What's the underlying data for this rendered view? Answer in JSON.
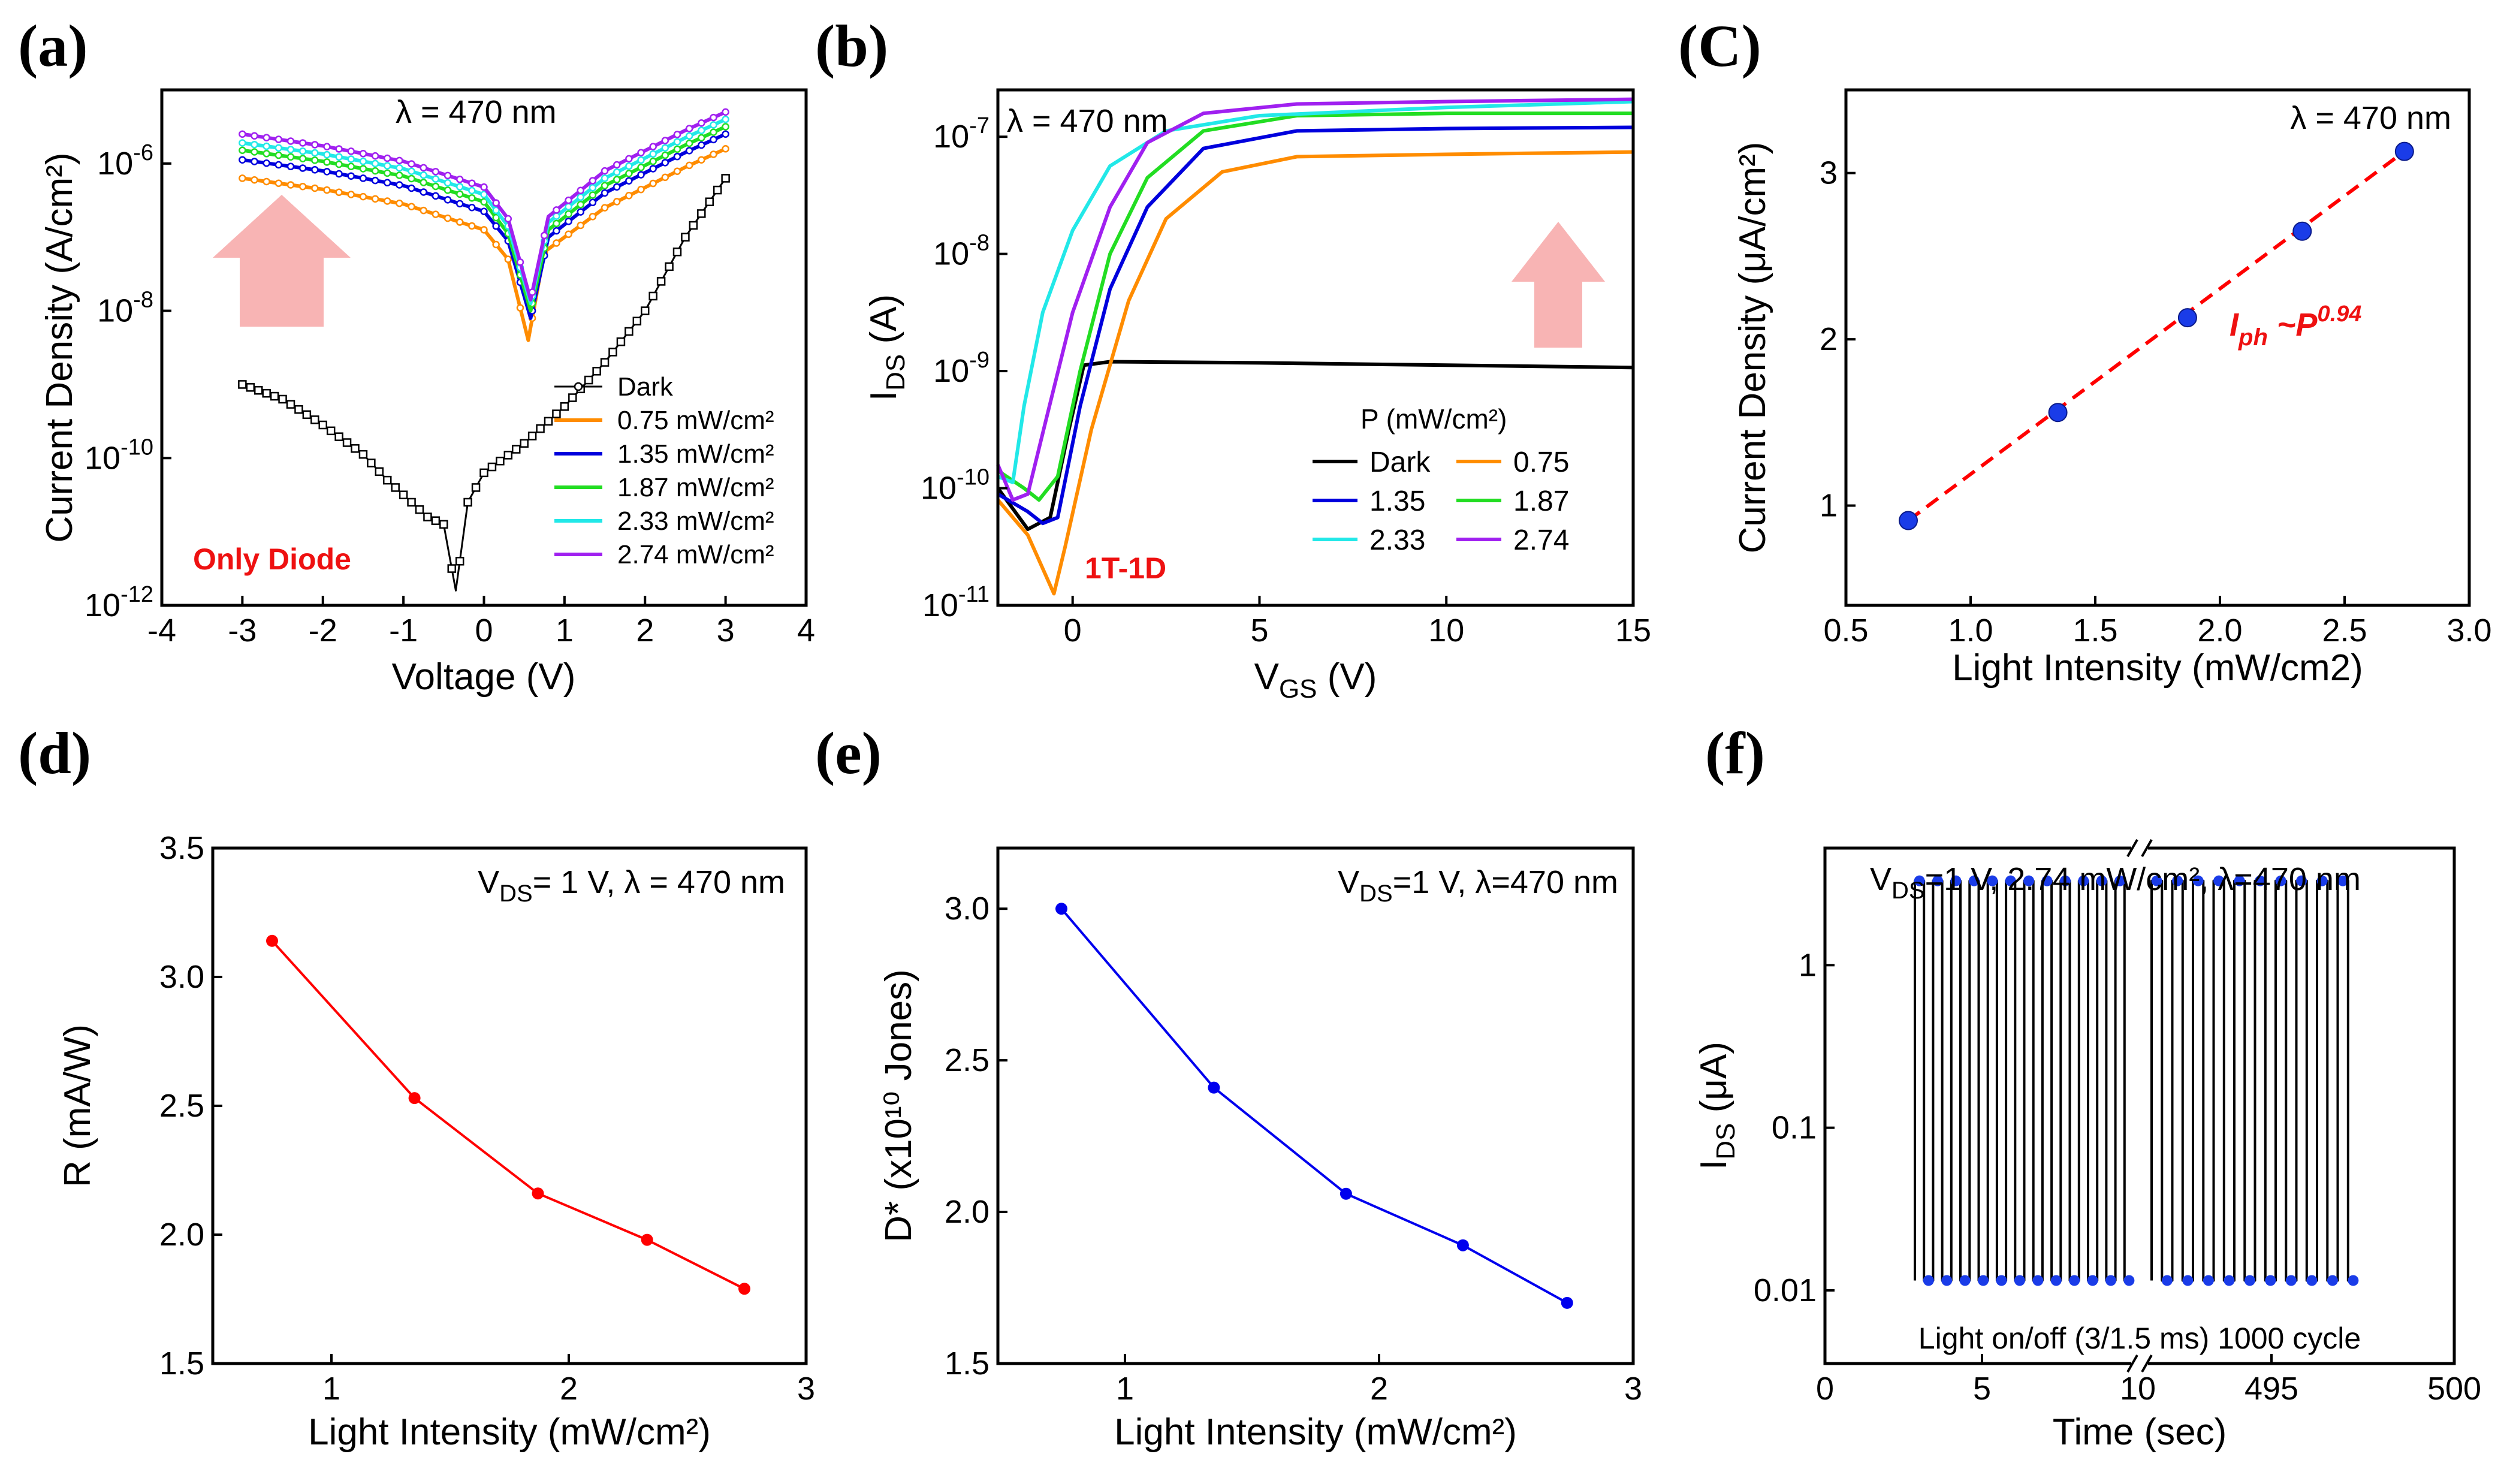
{
  "colors": {
    "dark": "#000000",
    "p075": "#ff8c00",
    "p135": "#0000dd",
    "p187": "#22dd22",
    "p233": "#22e8e8",
    "p274": "#a020f0",
    "arrow": "#f8b4b4",
    "red": "#ff0000",
    "blue": "#0000ee",
    "fit": "#ff0000",
    "marker": "#1a3ce8"
  },
  "chart_data": [
    {
      "id": "a",
      "panel_label": "(a)",
      "type": "line",
      "xlabel": "Voltage (V)",
      "ylabel": "Current Density (A/cm²)",
      "yscale": "log",
      "xlim": [
        -4,
        4
      ],
      "ylim_log10": [
        -12,
        -5
      ],
      "xticks": [
        -4,
        -3,
        -2,
        -1,
        0,
        1,
        2,
        3,
        4
      ],
      "xtick_labels": [
        "-4",
        "-3",
        "-2",
        "-1",
        "0",
        "1",
        "2",
        "3",
        "4"
      ],
      "yticks_exp": [
        -12,
        -10,
        -8,
        -6
      ],
      "ytick_labels": [
        {
          "base": "10",
          "exp": "-12"
        },
        {
          "base": "10",
          "exp": "-10"
        },
        {
          "base": "10",
          "exp": "-8"
        },
        {
          "base": "10",
          "exp": "-6"
        }
      ],
      "annotation": "λ = 470 nm",
      "note": "Only Diode",
      "legend": [
        "Dark",
        "0.75 mW/cm²",
        "1.35 mW/cm²",
        "1.87 mW/cm²",
        "2.33 mW/cm²",
        "2.74 mW/cm²"
      ],
      "series": [
        {
          "name": "Dark",
          "color_key": "dark",
          "log10_points": [
            [
              -3,
              -9.0
            ],
            [
              -2.5,
              -9.2
            ],
            [
              -2,
              -9.55
            ],
            [
              -1.5,
              -9.95
            ],
            [
              -1.2,
              -10.3
            ],
            [
              -1.0,
              -10.5
            ],
            [
              -0.7,
              -10.8
            ],
            [
              -0.5,
              -10.9
            ],
            [
              -0.35,
              -11.8
            ],
            [
              -0.2,
              -10.6
            ],
            [
              0,
              -10.2
            ],
            [
              0.5,
              -9.8
            ],
            [
              1,
              -9.3
            ],
            [
              1.5,
              -8.7
            ],
            [
              2,
              -8.0
            ],
            [
              2.5,
              -7.0
            ],
            [
              3,
              -6.2
            ]
          ]
        },
        {
          "name": "0.75 mW/cm²",
          "color_key": "p075",
          "log10_points": [
            [
              -3,
              -6.2
            ],
            [
              -2,
              -6.35
            ],
            [
              -1,
              -6.55
            ],
            [
              0,
              -6.9
            ],
            [
              0.3,
              -7.3
            ],
            [
              0.55,
              -8.4
            ],
            [
              0.75,
              -7.2
            ],
            [
              1.5,
              -6.6
            ],
            [
              2.5,
              -6.05
            ],
            [
              3,
              -5.8
            ]
          ]
        },
        {
          "name": "1.35 mW/cm²",
          "color_key": "p135",
          "log10_points": [
            [
              -3,
              -5.95
            ],
            [
              -2,
              -6.1
            ],
            [
              -1,
              -6.3
            ],
            [
              0,
              -6.65
            ],
            [
              0.3,
              -7.05
            ],
            [
              0.58,
              -8.1
            ],
            [
              0.8,
              -7.0
            ],
            [
              1.5,
              -6.4
            ],
            [
              2.5,
              -5.85
            ],
            [
              3,
              -5.6
            ]
          ]
        },
        {
          "name": "1.87 mW/cm²",
          "color_key": "p187",
          "log10_points": [
            [
              -3,
              -5.82
            ],
            [
              -2,
              -5.97
            ],
            [
              -1,
              -6.17
            ],
            [
              0,
              -6.52
            ],
            [
              0.3,
              -6.95
            ],
            [
              0.58,
              -8.0
            ],
            [
              0.8,
              -6.9
            ],
            [
              1.5,
              -6.3
            ],
            [
              2.5,
              -5.75
            ],
            [
              3,
              -5.5
            ]
          ]
        },
        {
          "name": "2.33 mW/cm²",
          "color_key": "p233",
          "log10_points": [
            [
              -3,
              -5.72
            ],
            [
              -2,
              -5.87
            ],
            [
              -1,
              -6.07
            ],
            [
              0,
              -6.42
            ],
            [
              0.3,
              -6.85
            ],
            [
              0.58,
              -7.9
            ],
            [
              0.8,
              -6.8
            ],
            [
              1.5,
              -6.2
            ],
            [
              2.5,
              -5.65
            ],
            [
              3,
              -5.4
            ]
          ]
        },
        {
          "name": "2.74 mW/cm²",
          "color_key": "p274",
          "log10_points": [
            [
              -3,
              -5.6
            ],
            [
              -2,
              -5.76
            ],
            [
              -1,
              -5.97
            ],
            [
              0,
              -6.32
            ],
            [
              0.3,
              -6.75
            ],
            [
              0.58,
              -7.85
            ],
            [
              0.8,
              -6.72
            ],
            [
              1.5,
              -6.1
            ],
            [
              2.5,
              -5.55
            ],
            [
              3,
              -5.3
            ]
          ]
        }
      ]
    },
    {
      "id": "b",
      "panel_label": "(b)",
      "type": "line",
      "xlabel": {
        "main": "V",
        "sub": "GS",
        "rest": " (V)"
      },
      "ylabel": {
        "main": "I",
        "sub": "DS",
        "rest": " (A)"
      },
      "yscale": "log",
      "xlim": [
        -2,
        15
      ],
      "ylim_log10": [
        -11,
        -6.6
      ],
      "xticks": [
        0,
        5,
        10,
        15
      ],
      "xtick_labels": [
        "0",
        "5",
        "10",
        "15"
      ],
      "yticks_exp": [
        -11,
        -10,
        -9,
        -8,
        -7
      ],
      "ytick_labels": [
        {
          "base": "10",
          "exp": "-11"
        },
        {
          "base": "10",
          "exp": "-10"
        },
        {
          "base": "10",
          "exp": "-9"
        },
        {
          "base": "10",
          "exp": "-8"
        },
        {
          "base": "10",
          "exp": "-7"
        }
      ],
      "annotation": "λ = 470 nm",
      "note": "1T-1D",
      "legend_title": "P (mW/cm²)",
      "legend": [
        "Dark",
        "0.75",
        "1.35",
        "1.87",
        "2.33",
        "2.74"
      ],
      "series": [
        {
          "name": "Dark",
          "color_key": "dark",
          "log10_points": [
            [
              -2,
              -10.0
            ],
            [
              -1.2,
              -10.35
            ],
            [
              -0.6,
              -10.25
            ],
            [
              -0.1,
              -9.5
            ],
            [
              0.3,
              -8.95
            ],
            [
              1,
              -8.92
            ],
            [
              5,
              -8.93
            ],
            [
              10,
              -8.95
            ],
            [
              15,
              -8.97
            ]
          ]
        },
        {
          "name": "0.75",
          "color_key": "p075",
          "log10_points": [
            [
              -2,
              -10.1
            ],
            [
              -1.2,
              -10.4
            ],
            [
              -0.5,
              -10.9
            ],
            [
              -0.2,
              -10.5
            ],
            [
              0.5,
              -9.5
            ],
            [
              1.5,
              -8.4
            ],
            [
              2.5,
              -7.7
            ],
            [
              4,
              -7.3
            ],
            [
              6,
              -7.17
            ],
            [
              10,
              -7.15
            ],
            [
              15,
              -7.13
            ]
          ]
        },
        {
          "name": "1.35",
          "color_key": "p135",
          "log10_points": [
            [
              -2,
              -10.05
            ],
            [
              -1.2,
              -10.2
            ],
            [
              -0.8,
              -10.3
            ],
            [
              -0.4,
              -10.25
            ],
            [
              0.2,
              -9.3
            ],
            [
              1,
              -8.3
            ],
            [
              2,
              -7.6
            ],
            [
              3.5,
              -7.1
            ],
            [
              6,
              -6.95
            ],
            [
              10,
              -6.93
            ],
            [
              15,
              -6.92
            ]
          ]
        },
        {
          "name": "1.87",
          "color_key": "p187",
          "log10_points": [
            [
              -2,
              -9.85
            ],
            [
              -1.3,
              -10.0
            ],
            [
              -0.9,
              -10.1
            ],
            [
              -0.4,
              -9.9
            ],
            [
              0.2,
              -9.0
            ],
            [
              1,
              -8.0
            ],
            [
              2,
              -7.35
            ],
            [
              3.5,
              -6.95
            ],
            [
              6,
              -6.82
            ],
            [
              10,
              -6.8
            ],
            [
              15,
              -6.8
            ]
          ]
        },
        {
          "name": "2.33",
          "color_key": "p233",
          "log10_points": [
            [
              -2,
              -9.9
            ],
            [
              -1.6,
              -9.95
            ],
            [
              -1.3,
              -9.3
            ],
            [
              -0.8,
              -8.5
            ],
            [
              0,
              -7.8
            ],
            [
              1,
              -7.25
            ],
            [
              2.5,
              -6.95
            ],
            [
              5,
              -6.82
            ],
            [
              10,
              -6.75
            ],
            [
              15,
              -6.7
            ]
          ]
        },
        {
          "name": "2.74",
          "color_key": "p274",
          "log10_points": [
            [
              -2,
              -9.8
            ],
            [
              -1.6,
              -10.1
            ],
            [
              -1.2,
              -10.05
            ],
            [
              -0.7,
              -9.4
            ],
            [
              0,
              -8.5
            ],
            [
              1,
              -7.6
            ],
            [
              2,
              -7.05
            ],
            [
              3.5,
              -6.8
            ],
            [
              6,
              -6.72
            ],
            [
              10,
              -6.7
            ],
            [
              15,
              -6.68
            ]
          ]
        }
      ]
    },
    {
      "id": "c",
      "panel_label": "(C)",
      "type": "scatter",
      "xlabel": "Light Intensity (mW/cm2)",
      "ylabel": "Current Density (μA/cm²)",
      "xlim": [
        0.5,
        3.0
      ],
      "ylim": [
        0.4,
        3.5
      ],
      "xticks": [
        0.5,
        1.0,
        1.5,
        2.0,
        2.5,
        3.0
      ],
      "xtick_labels": [
        "0.5",
        "1.0",
        "1.5",
        "2.0",
        "2.5",
        "3.0"
      ],
      "yticks": [
        1,
        2,
        3
      ],
      "ytick_labels": [
        "1",
        "2",
        "3"
      ],
      "annotation": "λ = 470 nm",
      "fit_label": {
        "base": "I",
        "sub": "ph",
        "rest": " ~P",
        "exp": "0.94"
      },
      "x": [
        0.75,
        1.35,
        1.87,
        2.33,
        2.74
      ],
      "y": [
        0.91,
        1.56,
        2.13,
        2.65,
        3.13
      ],
      "fit": [
        [
          0.75,
          0.91
        ],
        [
          2.74,
          3.13
        ]
      ]
    },
    {
      "id": "d",
      "panel_label": "(d)",
      "type": "line",
      "xlabel": "Light Intensity (mW/cm²)",
      "ylabel": "R (mA/W)",
      "xlim": [
        0.5,
        3.0
      ],
      "ylim": [
        1.5,
        3.5
      ],
      "xticks": [
        1,
        2,
        3
      ],
      "xtick_labels": [
        "1",
        "2",
        "3"
      ],
      "yticks": [
        1.5,
        2.0,
        2.5,
        3.0,
        3.5
      ],
      "ytick_labels": [
        "1.5",
        "2.0",
        "2.5",
        "3.0",
        "3.5"
      ],
      "annotation": {
        "main": "V",
        "sub": "DS",
        "rest": "= 1 V, λ = 470 nm"
      },
      "color_key": "red",
      "x": [
        0.75,
        1.35,
        1.87,
        2.33,
        2.74
      ],
      "y": [
        3.14,
        2.53,
        2.16,
        1.98,
        1.79
      ]
    },
    {
      "id": "e",
      "panel_label": "(e)",
      "type": "line",
      "xlabel": "Light Intensity (mW/cm²)",
      "ylabel": "D* (x10¹⁰ Jones)",
      "xlim": [
        0.5,
        3.0
      ],
      "ylim": [
        1.5,
        3.2
      ],
      "xticks": [
        1,
        2,
        3
      ],
      "xtick_labels": [
        "1",
        "2",
        "3"
      ],
      "yticks": [
        1.5,
        2.0,
        2.5,
        3.0
      ],
      "ytick_labels": [
        "1.5",
        "2.0",
        "2.5",
        "3.0"
      ],
      "annotation": {
        "main": "V",
        "sub": "DS",
        "rest": "=1 V, λ=470 nm"
      },
      "color_key": "blue",
      "x": [
        0.75,
        1.35,
        1.87,
        2.33,
        2.74
      ],
      "y": [
        3.0,
        2.41,
        2.06,
        1.89,
        1.7
      ]
    },
    {
      "id": "f",
      "panel_label": "(f)",
      "type": "line",
      "xlabel": "Time (sec)",
      "ylabel": {
        "main": "I",
        "sub": "DS",
        "rest": " (μA)"
      },
      "yscale": "log",
      "ylim_log10": [
        -2.45,
        0.72
      ],
      "yticks_exp": [
        -2,
        -1,
        0
      ],
      "ytick_labels": [
        "0.01",
        "0.1",
        "1"
      ],
      "xtick_labels": [
        "0",
        "5",
        "10",
        "495",
        "500"
      ],
      "annotation": {
        "main": "V",
        "sub": "DS",
        "rest": "=1 V, 2.74 mW/cm², λ=470 nm"
      },
      "note": "Light on/off (3/1.5 ms) 1000 cycle",
      "on_level_uA": 3.3,
      "off_level_uA": 0.0115,
      "cycles_left": 12,
      "cycles_right": 10
    }
  ]
}
